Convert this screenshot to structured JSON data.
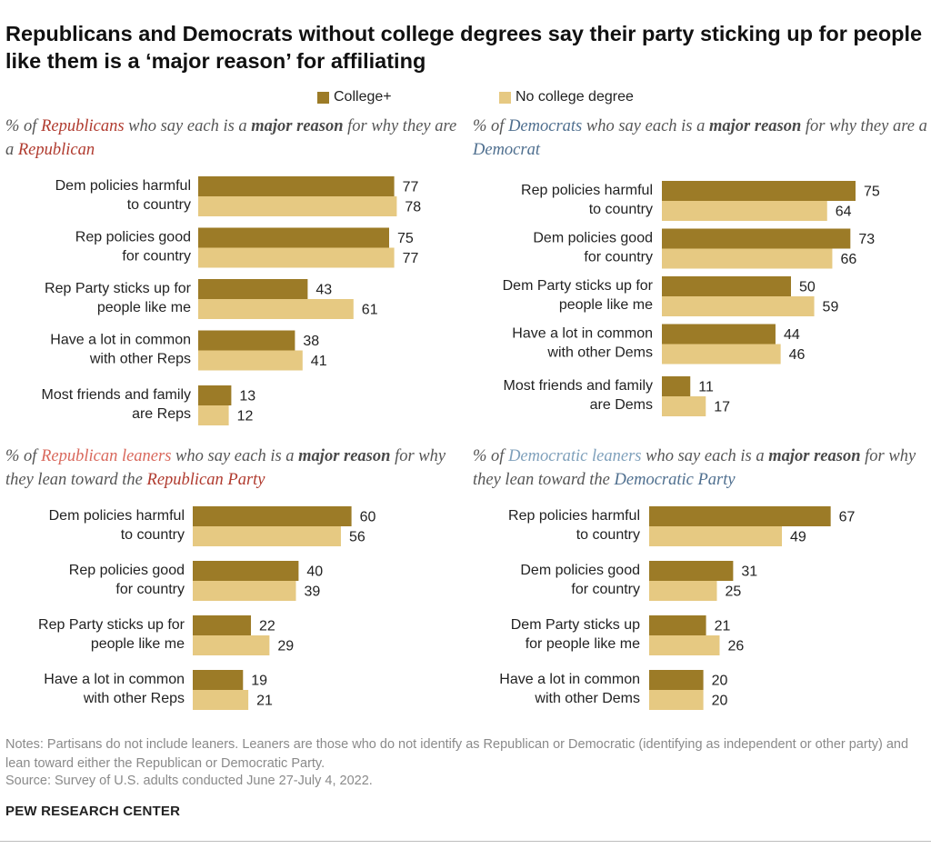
{
  "title": "Republicans and Democrats without college degrees say their party sticking up for people like them is a ‘major reason’ for affiliating",
  "legend": {
    "college": "College+",
    "no_college": "No college degree"
  },
  "colors": {
    "college": "#9c7b27",
    "no_college": "#e6c982",
    "republican": "#b03a2e",
    "democrat": "#4f6f8f",
    "rep_leaner": "#d9685c",
    "dem_leaner": "#7fa0bb"
  },
  "subtitles": {
    "rep": {
      "pre": "% of ",
      "group": "Republicans",
      "mid": " who say each is a ",
      "bold": "major reason",
      "post": " for why they are a ",
      "end": "Republican"
    },
    "dem": {
      "pre": "% of ",
      "group": "Democrats",
      "mid": " who say each is a ",
      "bold": "major reason",
      "post": " for why they are a ",
      "end": "Democrat"
    },
    "rep_lean": {
      "pre": "% of ",
      "group": "Republican leaners",
      "mid": " who say each is a ",
      "bold": "major reason",
      "post": " for why they lean toward the ",
      "end": "Republican Party"
    },
    "dem_lean": {
      "pre": "% of ",
      "group": "Democratic leaners",
      "mid": " who say each is a ",
      "bold": "major reason",
      "post": " for why they lean toward the ",
      "end": "Democratic Party"
    }
  },
  "chart_data": [
    {
      "type": "bar",
      "orientation": "horizontal",
      "id": "rep",
      "categories": [
        [
          "Dem policies harmful",
          "to country"
        ],
        [
          "Rep policies good",
          "for country"
        ],
        [
          "Rep Party sticks up for",
          "people like me"
        ],
        [
          "Have a lot in common",
          "with other Reps"
        ],
        [
          "Most friends and family",
          "are Reps"
        ]
      ],
      "series": [
        {
          "name": "College+",
          "values": [
            77,
            75,
            43,
            38,
            13
          ]
        },
        {
          "name": "No college degree",
          "values": [
            78,
            77,
            61,
            41,
            12
          ]
        }
      ]
    },
    {
      "type": "bar",
      "orientation": "horizontal",
      "id": "dem",
      "categories": [
        [
          "Rep policies harmful",
          "to country"
        ],
        [
          "Dem policies good",
          "for country"
        ],
        [
          "Dem Party sticks up for",
          "people like me"
        ],
        [
          "Have a lot in common",
          "with other Dems"
        ],
        [
          "Most friends and family",
          "are Dems"
        ]
      ],
      "series": [
        {
          "name": "College+",
          "values": [
            75,
            73,
            50,
            44,
            11
          ]
        },
        {
          "name": "No college degree",
          "values": [
            64,
            66,
            59,
            46,
            17
          ]
        }
      ]
    },
    {
      "type": "bar",
      "orientation": "horizontal",
      "id": "rep_lean",
      "categories": [
        [
          "Dem policies harmful",
          "to country"
        ],
        [
          "Rep policies good",
          "for country"
        ],
        [
          "Rep Party sticks up for",
          "people like me"
        ],
        [
          "Have a lot in common",
          "with other Reps"
        ]
      ],
      "series": [
        {
          "name": "College+",
          "values": [
            60,
            40,
            22,
            19
          ]
        },
        {
          "name": "No college degree",
          "values": [
            56,
            39,
            29,
            21
          ]
        }
      ]
    },
    {
      "type": "bar",
      "orientation": "horizontal",
      "id": "dem_lean",
      "categories": [
        [
          "Rep policies harmful",
          "to country"
        ],
        [
          "Dem policies good",
          "for country"
        ],
        [
          "Dem Party sticks up",
          "for people like me"
        ],
        [
          "Have a lot in common",
          "with other Dems"
        ]
      ],
      "series": [
        {
          "name": "College+",
          "values": [
            67,
            31,
            21,
            20
          ]
        },
        {
          "name": "No college degree",
          "values": [
            49,
            25,
            26,
            20
          ]
        }
      ]
    }
  ],
  "notes": "Notes: Partisans do not include leaners. Leaners are those who do not identify as Republican or Democratic (identifying as independent or other party) and lean toward either the Republican or Democratic Party.",
  "source": "Source: Survey of U.S. adults conducted June 27-July 4, 2022.",
  "brand": "PEW RESEARCH CENTER"
}
